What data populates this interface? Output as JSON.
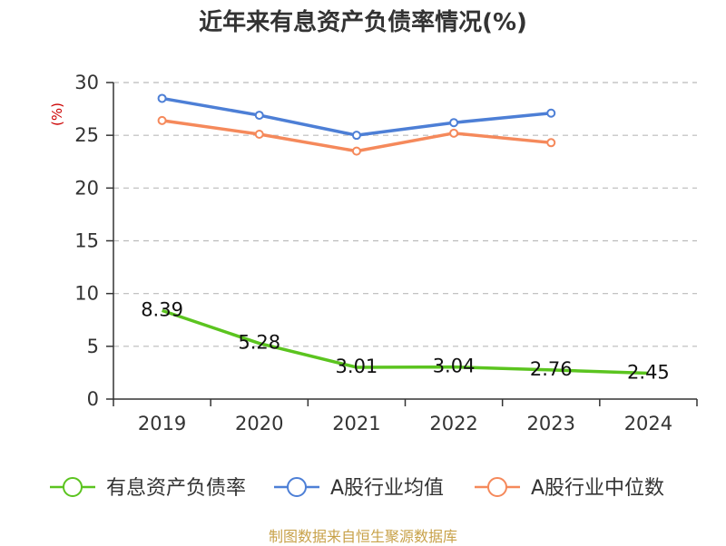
{
  "chart_data": {
    "type": "line",
    "title": "近年来有息资产负债率情况(%)",
    "ylabel": "(%)",
    "xlabel": "",
    "categories": [
      "2019",
      "2020",
      "2021",
      "2022",
      "2023",
      "2024"
    ],
    "ylim": [
      0,
      30
    ],
    "yticks": [
      0,
      5,
      10,
      15,
      20,
      25,
      30
    ],
    "grid": true,
    "legend_position": "bottom",
    "series": [
      {
        "name": "有息资产负债率",
        "color": "#5bc41f",
        "values": [
          8.39,
          5.28,
          3.01,
          3.04,
          2.76,
          2.45
        ],
        "labels": [
          "8.39",
          "5.28",
          "3.01",
          "3.04",
          "2.76",
          "2.45"
        ],
        "show_markers": false
      },
      {
        "name": "A股行业均值",
        "color": "#4d7fd6",
        "values": [
          28.5,
          26.9,
          25.0,
          26.2,
          27.1,
          null
        ],
        "show_markers": true
      },
      {
        "name": "A股行业中位数",
        "color": "#f5895b",
        "values": [
          26.4,
          25.1,
          23.5,
          25.2,
          24.3,
          null
        ],
        "show_markers": true
      }
    ]
  },
  "footer": {
    "source": "制图数据来自恒生聚源数据库"
  }
}
